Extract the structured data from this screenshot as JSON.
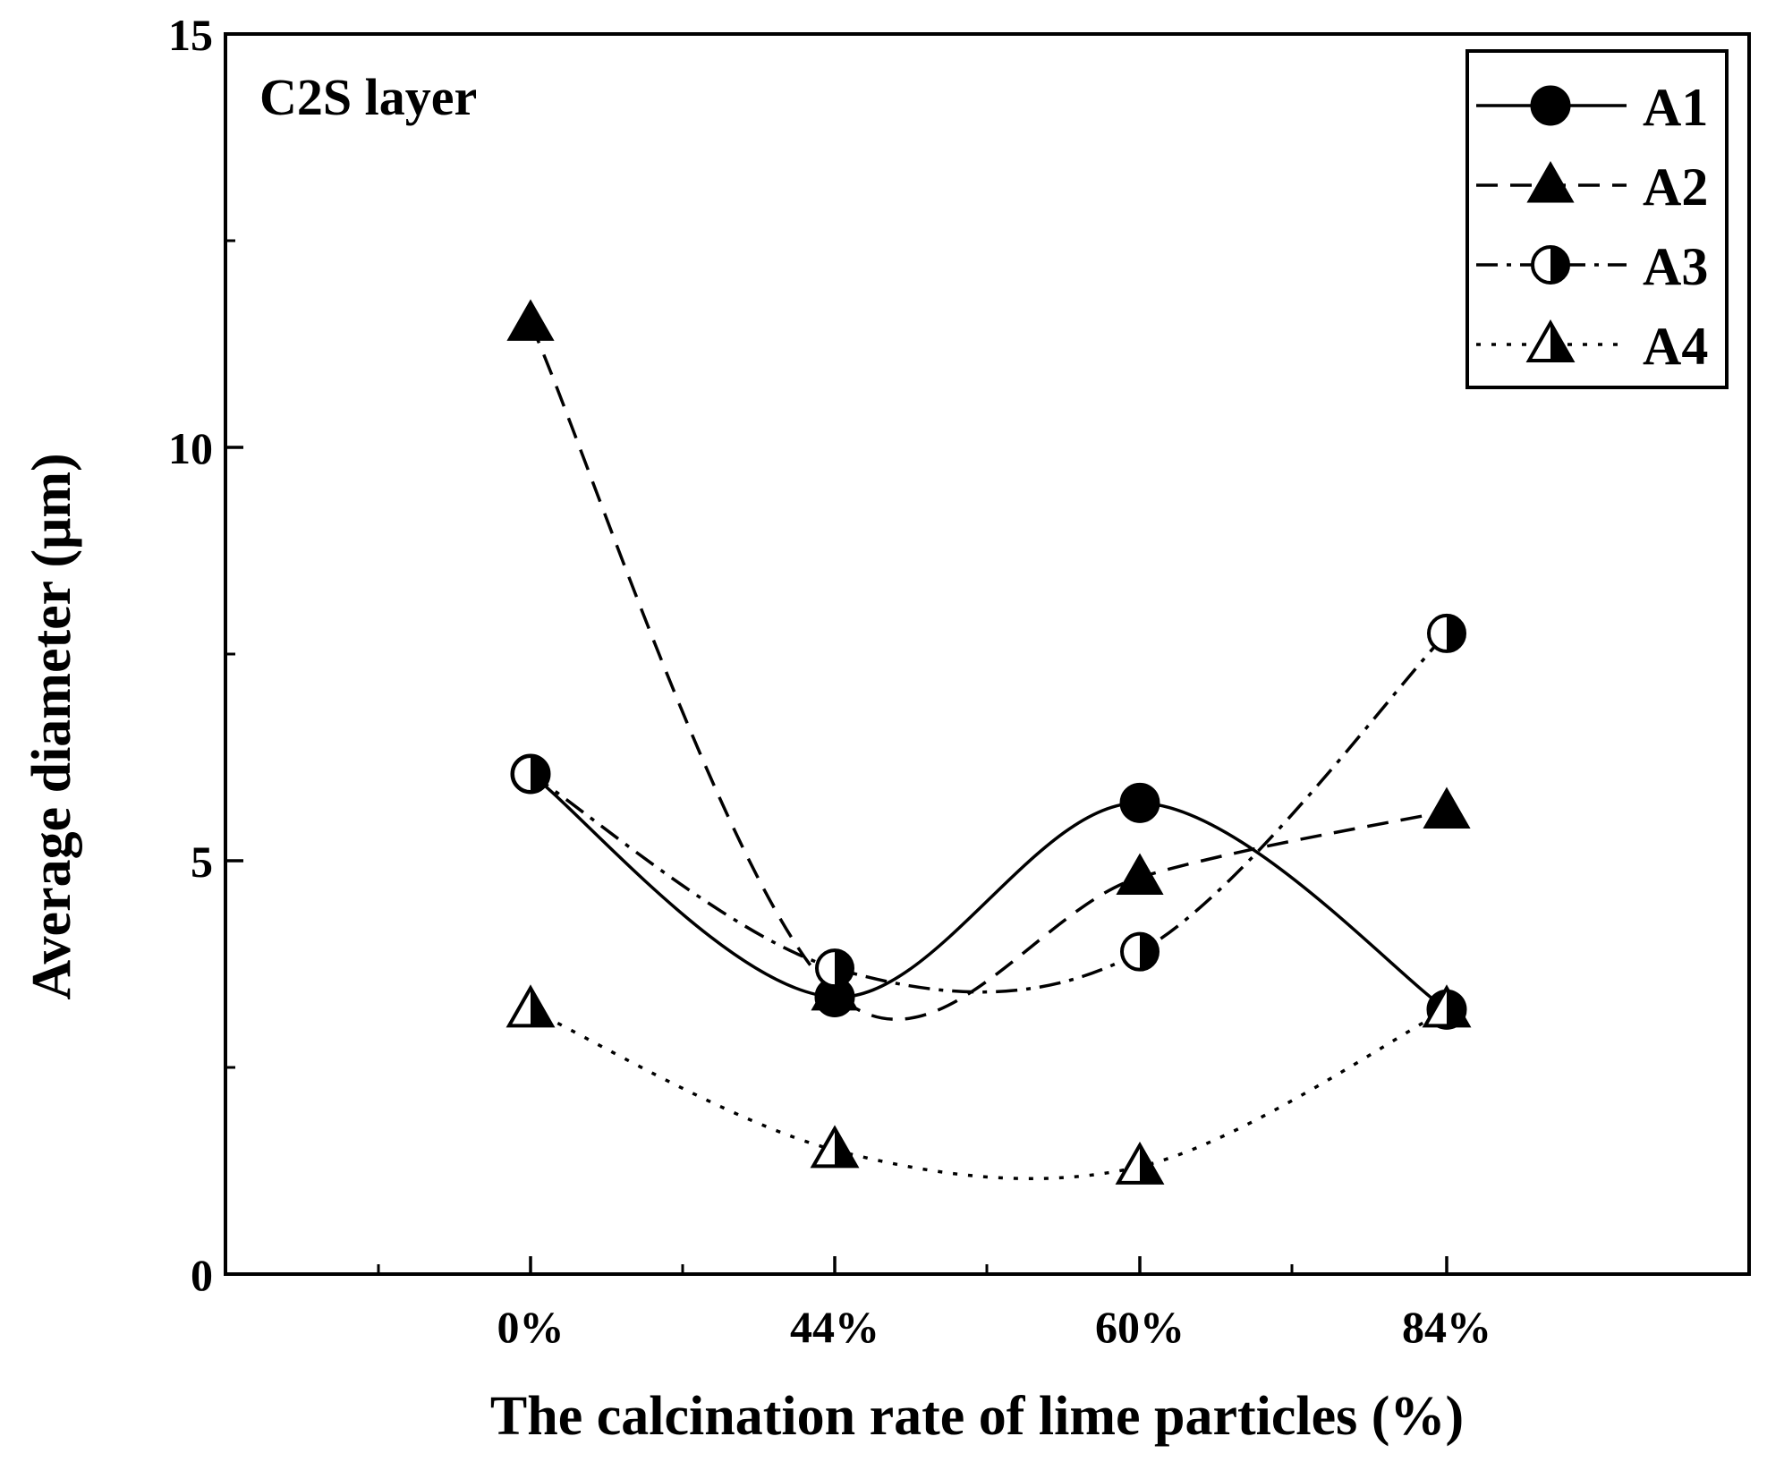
{
  "chart_data": {
    "type": "line",
    "annotation": "C2S layer",
    "xlabel": "The calcination rate of lime particles (%)",
    "ylabel": "Average diameter (μm)",
    "categories": [
      "0%",
      "44%",
      "60%",
      "84%"
    ],
    "ylim": [
      0,
      15
    ],
    "yticks": [
      0,
      5,
      10,
      15
    ],
    "ytick_labels": [
      "0",
      "5",
      "10",
      "15"
    ],
    "legend_position": "top-right",
    "series": [
      {
        "name": "A1",
        "values": [
          6.05,
          3.35,
          5.7,
          3.2
        ],
        "marker": "filled-circle",
        "dash": "solid"
      },
      {
        "name": "A2",
        "values": [
          11.5,
          3.4,
          4.8,
          5.6
        ],
        "marker": "filled-triangle",
        "dash": "dashed"
      },
      {
        "name": "A3",
        "values": [
          6.05,
          3.7,
          3.9,
          7.75
        ],
        "marker": "half-circle",
        "dash": "dash-dot"
      },
      {
        "name": "A4",
        "values": [
          3.2,
          1.5,
          1.3,
          3.2
        ],
        "marker": "half-triangle",
        "dash": "dotted"
      }
    ]
  }
}
